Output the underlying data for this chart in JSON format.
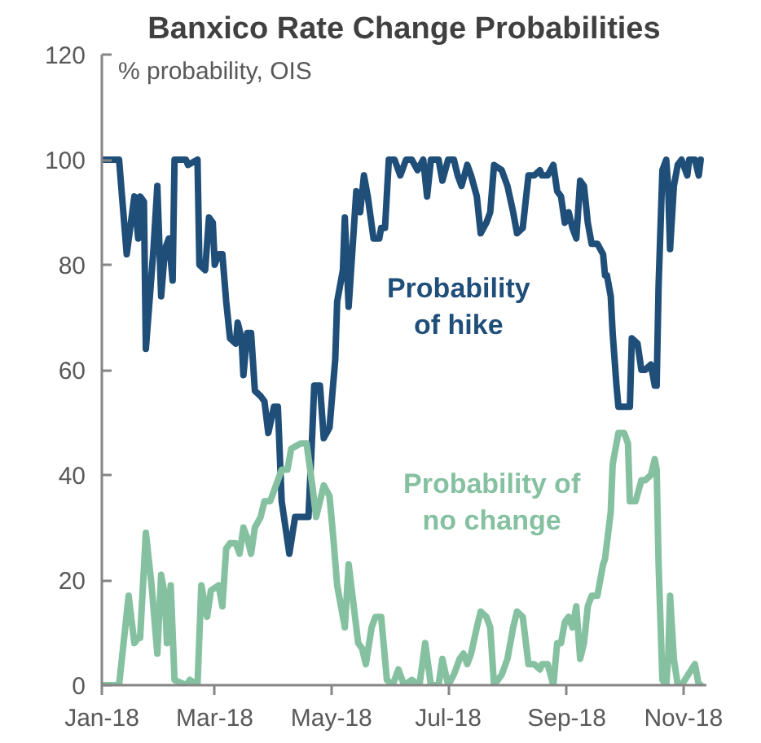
{
  "chart_data": {
    "type": "line",
    "title": "Banxico Rate Change Probabilities",
    "ylabel": "% probability, OIS",
    "line_style": "solid",
    "xlim": [
      "2018-01-01",
      "2018-11-13"
    ],
    "xticks": [
      {
        "value": "2018-01-01",
        "label": "Jan-18"
      },
      {
        "value": "2018-03-01",
        "label": "Mar-18"
      },
      {
        "value": "2018-05-01",
        "label": "May-18"
      },
      {
        "value": "2018-07-01",
        "label": "Jul-18"
      },
      {
        "value": "2018-09-01",
        "label": "Sep-18"
      },
      {
        "value": "2018-11-01",
        "label": "Nov-18"
      }
    ],
    "ylim": [
      0,
      120
    ],
    "yticks": [
      0,
      20,
      40,
      60,
      80,
      100,
      120
    ],
    "series": [
      {
        "name": "Probability\nof hike",
        "color": "#1f4e79",
        "x": [
          "2018-01-01",
          "2018-01-10",
          "2018-01-14",
          "2018-01-18",
          "2018-01-20",
          "2018-01-21",
          "2018-01-23",
          "2018-01-24",
          "2018-01-28",
          "2018-01-30",
          "2018-02-01",
          "2018-02-03",
          "2018-02-05",
          "2018-02-07",
          "2018-02-08",
          "2018-02-14",
          "2018-02-15",
          "2018-02-20",
          "2018-02-21",
          "2018-02-24",
          "2018-02-26",
          "2018-02-28",
          "2018-03-01",
          "2018-03-03",
          "2018-03-05",
          "2018-03-07",
          "2018-03-09",
          "2018-03-12",
          "2018-03-13",
          "2018-03-15",
          "2018-03-16",
          "2018-03-18",
          "2018-03-20",
          "2018-03-22",
          "2018-03-25",
          "2018-03-27",
          "2018-03-29",
          "2018-04-01",
          "2018-04-03",
          "2018-04-05",
          "2018-04-09",
          "2018-04-12",
          "2018-04-19",
          "2018-04-21",
          "2018-04-22",
          "2018-04-25",
          "2018-04-27",
          "2018-04-30",
          "2018-05-03",
          "2018-05-04",
          "2018-05-07",
          "2018-05-08",
          "2018-05-10",
          "2018-05-12",
          "2018-05-14",
          "2018-05-16",
          "2018-05-18",
          "2018-05-20",
          "2018-05-23",
          "2018-05-26",
          "2018-05-27",
          "2018-05-29",
          "2018-05-31",
          "2018-06-03",
          "2018-06-06",
          "2018-06-09",
          "2018-06-12",
          "2018-06-15",
          "2018-06-18",
          "2018-06-20",
          "2018-06-22",
          "2018-06-26",
          "2018-06-28",
          "2018-07-01",
          "2018-07-04",
          "2018-07-06",
          "2018-07-08",
          "2018-07-11",
          "2018-07-13",
          "2018-07-16",
          "2018-07-18",
          "2018-07-21",
          "2018-07-23",
          "2018-07-25",
          "2018-07-29",
          "2018-08-01",
          "2018-08-04",
          "2018-08-06",
          "2018-08-09",
          "2018-08-12",
          "2018-08-15",
          "2018-08-18",
          "2018-08-19",
          "2018-08-22",
          "2018-08-25",
          "2018-08-27",
          "2018-08-29",
          "2018-08-31",
          "2018-09-02",
          "2018-09-04",
          "2018-09-06",
          "2018-09-08",
          "2018-09-10",
          "2018-09-12",
          "2018-09-14",
          "2018-09-17",
          "2018-09-20",
          "2018-09-21",
          "2018-09-22",
          "2018-09-24",
          "2018-09-25",
          "2018-09-27",
          "2018-09-28",
          "2018-10-01",
          "2018-10-04",
          "2018-10-05",
          "2018-10-08",
          "2018-10-10",
          "2018-10-12",
          "2018-10-15",
          "2018-10-17",
          "2018-10-18",
          "2018-10-19",
          "2018-10-21",
          "2018-10-23",
          "2018-10-24",
          "2018-10-25",
          "2018-10-27",
          "2018-10-29",
          "2018-10-31",
          "2018-11-03",
          "2018-11-04",
          "2018-11-07",
          "2018-11-09",
          "2018-11-10"
        ],
        "values": [
          100,
          100,
          82,
          93,
          85,
          93,
          92,
          64,
          83,
          95,
          74,
          83,
          85,
          77,
          100,
          100,
          99,
          100,
          80,
          79,
          89,
          88,
          80,
          82,
          82,
          73,
          66,
          65,
          69,
          66,
          59,
          67,
          67,
          56,
          55,
          54,
          48,
          53,
          53,
          35,
          25,
          32,
          32,
          48,
          57,
          57,
          47,
          49,
          62,
          73,
          79,
          89,
          72,
          83,
          94,
          90,
          97,
          93,
          85,
          85,
          87,
          87,
          100,
          100,
          97,
          100,
          100,
          98,
          100,
          93,
          100,
          100,
          96,
          100,
          100,
          97,
          95,
          99,
          97,
          93,
          86,
          88,
          90,
          99,
          98,
          95,
          90,
          86,
          87,
          97,
          97,
          98,
          97,
          97,
          99,
          94,
          93,
          88,
          90,
          87,
          85,
          96,
          95,
          88,
          84,
          84,
          82,
          78,
          78,
          74,
          67,
          57,
          53,
          53,
          53,
          66,
          65,
          60,
          60,
          61,
          57,
          57,
          76,
          98,
          100,
          95,
          83,
          95,
          99,
          100,
          97,
          100,
          100,
          97,
          100
        ]
      },
      {
        "name": "Probability of\nno change",
        "color": "#85c1a0",
        "x": [
          "2018-01-01",
          "2018-01-10",
          "2018-01-15",
          "2018-01-18",
          "2018-01-20",
          "2018-01-21",
          "2018-01-24",
          "2018-01-27",
          "2018-01-30",
          "2018-02-01",
          "2018-02-03",
          "2018-02-04",
          "2018-02-06",
          "2018-02-08",
          "2018-02-14",
          "2018-02-16",
          "2018-02-20",
          "2018-02-22",
          "2018-02-25",
          "2018-02-27",
          "2018-03-03",
          "2018-03-05",
          "2018-03-07",
          "2018-03-09",
          "2018-03-12",
          "2018-03-14",
          "2018-03-16",
          "2018-03-18",
          "2018-03-20",
          "2018-03-22",
          "2018-03-25",
          "2018-03-27",
          "2018-03-30",
          "2018-04-02",
          "2018-04-05",
          "2018-04-08",
          "2018-04-10",
          "2018-04-15",
          "2018-04-18",
          "2018-04-21",
          "2018-04-23",
          "2018-04-27",
          "2018-04-30",
          "2018-05-02",
          "2018-05-04",
          "2018-05-07",
          "2018-05-08",
          "2018-05-10",
          "2018-05-12",
          "2018-05-15",
          "2018-05-17",
          "2018-05-19",
          "2018-05-22",
          "2018-05-24",
          "2018-05-27",
          "2018-05-30",
          "2018-06-02",
          "2018-06-05",
          "2018-06-08",
          "2018-06-12",
          "2018-06-16",
          "2018-06-19",
          "2018-06-22",
          "2018-06-26",
          "2018-06-28",
          "2018-07-01",
          "2018-07-04",
          "2018-07-07",
          "2018-07-09",
          "2018-07-11",
          "2018-07-13",
          "2018-07-16",
          "2018-07-18",
          "2018-07-21",
          "2018-07-23",
          "2018-07-25",
          "2018-07-29",
          "2018-08-01",
          "2018-08-04",
          "2018-08-06",
          "2018-08-09",
          "2018-08-12",
          "2018-08-15",
          "2018-08-18",
          "2018-08-19",
          "2018-08-22",
          "2018-08-25",
          "2018-08-27",
          "2018-08-29",
          "2018-08-31",
          "2018-09-02",
          "2018-09-04",
          "2018-09-06",
          "2018-09-08",
          "2018-09-10",
          "2018-09-12",
          "2018-09-14",
          "2018-09-17",
          "2018-09-20",
          "2018-09-21",
          "2018-09-22",
          "2018-09-24",
          "2018-09-25",
          "2018-09-27",
          "2018-09-28",
          "2018-10-01",
          "2018-10-03",
          "2018-10-04",
          "2018-10-07",
          "2018-10-10",
          "2018-10-12",
          "2018-10-15",
          "2018-10-17",
          "2018-10-18",
          "2018-10-19",
          "2018-10-21",
          "2018-10-23",
          "2018-10-24",
          "2018-10-25",
          "2018-10-27",
          "2018-10-29",
          "2018-10-31",
          "2018-11-07",
          "2018-11-09",
          "2018-11-10"
        ],
        "values": [
          0,
          0,
          17,
          8,
          9,
          9,
          29,
          19,
          6,
          21,
          17,
          8,
          19,
          1,
          0,
          1,
          0,
          19,
          13,
          18,
          19,
          15,
          26,
          27,
          27,
          25,
          30,
          28,
          25,
          30,
          32,
          35,
          35,
          38,
          41,
          41,
          45,
          46,
          46,
          38,
          32,
          38,
          36,
          28,
          19,
          13,
          11,
          23,
          17,
          8,
          7,
          4,
          11,
          13,
          13,
          1,
          0,
          3,
          0,
          1,
          0,
          8,
          0,
          0,
          5,
          0,
          2,
          5,
          6,
          4,
          6,
          11,
          14,
          13,
          11,
          0,
          2,
          5,
          11,
          14,
          13,
          4,
          4,
          3,
          4,
          4,
          0,
          8,
          8,
          12,
          13,
          11,
          15,
          5,
          8,
          15,
          17,
          17,
          23,
          24,
          27,
          33,
          42,
          46,
          48,
          48,
          46,
          35,
          35,
          39,
          39,
          40,
          43,
          41,
          23,
          1,
          0,
          5,
          17,
          5,
          0,
          0,
          4,
          0,
          0
        ]
      }
    ]
  }
}
